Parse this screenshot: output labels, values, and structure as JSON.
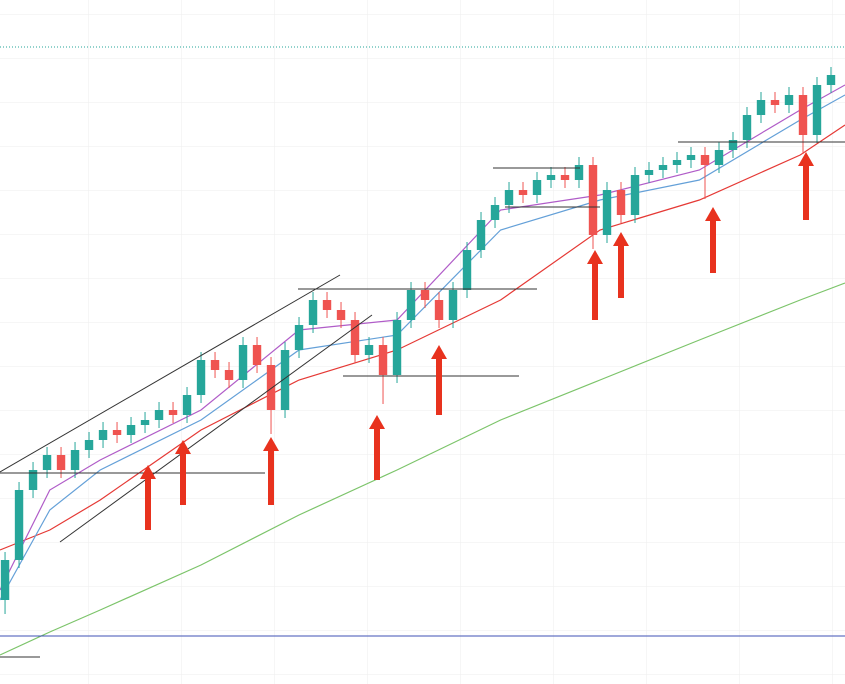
{
  "chart_data": {
    "type": "candlestick",
    "categories": [
      null,
      null,
      null,
      null,
      null,
      null,
      null,
      null,
      null,
      null,
      null,
      null,
      null,
      null,
      null,
      null,
      null,
      null,
      null,
      null,
      null,
      null,
      null,
      null,
      null,
      null,
      null,
      null,
      null,
      null,
      null,
      null,
      null,
      null,
      null,
      null,
      null,
      null,
      null,
      null,
      null,
      null,
      null,
      null,
      null,
      null,
      null,
      null,
      null,
      null,
      null,
      null,
      null,
      null,
      null,
      null,
      null,
      null,
      null,
      null
    ],
    "open": [
      84,
      124,
      194,
      214,
      229,
      214,
      234,
      244,
      254,
      249,
      259,
      264,
      274,
      269,
      289,
      324,
      314,
      304,
      339,
      319,
      274,
      334,
      359,
      384,
      374,
      364,
      329,
      339,
      309,
      364,
      394,
      384,
      364,
      394,
      434,
      464,
      479,
      494,
      489,
      504,
      509,
      504,
      519,
      449,
      494,
      469,
      509,
      514,
      519,
      524,
      529,
      519,
      534,
      544,
      569,
      584,
      579,
      589,
      549,
      599
    ],
    "high": [
      132,
      202,
      222,
      237,
      237,
      242,
      252,
      262,
      262,
      267,
      272,
      282,
      282,
      297,
      332,
      332,
      322,
      347,
      347,
      327,
      342,
      367,
      392,
      392,
      382,
      372,
      347,
      347,
      372,
      402,
      402,
      392,
      402,
      442,
      472,
      487,
      502,
      502,
      512,
      517,
      517,
      527,
      527,
      502,
      502,
      517,
      522,
      527,
      532,
      537,
      537,
      542,
      552,
      577,
      592,
      592,
      597,
      597,
      607,
      617
    ],
    "low": [
      70,
      116,
      186,
      206,
      206,
      206,
      226,
      236,
      241,
      241,
      251,
      256,
      261,
      261,
      281,
      306,
      296,
      296,
      311,
      250,
      266,
      326,
      351,
      366,
      356,
      321,
      321,
      280,
      301,
      356,
      376,
      356,
      356,
      386,
      426,
      456,
      471,
      481,
      481,
      496,
      496,
      496,
      435,
      441,
      461,
      461,
      501,
      506,
      511,
      516,
      485,
      511,
      526,
      536,
      561,
      571,
      571,
      530,
      541,
      591
    ],
    "close": [
      124,
      194,
      214,
      229,
      214,
      234,
      244,
      254,
      249,
      259,
      264,
      274,
      269,
      289,
      324,
      314,
      304,
      339,
      319,
      274,
      334,
      359,
      384,
      374,
      364,
      329,
      339,
      309,
      364,
      394,
      384,
      364,
      394,
      434,
      464,
      479,
      494,
      489,
      504,
      509,
      504,
      519,
      449,
      494,
      469,
      509,
      514,
      519,
      524,
      529,
      519,
      534,
      544,
      569,
      584,
      579,
      589,
      549,
      599,
      609
    ],
    "up_color": "#26a69a",
    "down_color": "#ef5350",
    "overlays": [
      {
        "color": "#e53935",
        "x": [
          -0.36,
          3.2,
          6.8,
          14,
          21,
          28,
          35.4,
          42.5,
          49.6,
          56.8,
          60
        ],
        "values": [
          134,
          154,
          184,
          254,
          304,
          334,
          384,
          454,
          484,
          529,
          559
        ]
      },
      {
        "color": "#64a0d8",
        "x": [
          -0.36,
          3.2,
          6.8,
          14,
          21,
          28,
          35.4,
          42.5,
          49.6,
          56.8,
          60
        ],
        "values": [
          84,
          174,
          214,
          264,
          334,
          349,
          454,
          484,
          504,
          564,
          589
        ]
      },
      {
        "color": "#b05cc8",
        "x": [
          -0.36,
          3.2,
          6.8,
          14,
          21,
          28,
          35.4,
          42.5,
          49.6,
          56.8,
          60
        ],
        "values": [
          94,
          194,
          224,
          274,
          354,
          364,
          474,
          489,
          514,
          574,
          599
        ]
      },
      {
        "color": "#7cc46a",
        "x": [
          -0.36,
          3.2,
          6.8,
          14,
          21,
          28,
          35.4,
          42.5,
          49.6,
          56.8,
          60
        ],
        "values": [
          29,
          52,
          74,
          119,
          169,
          214,
          264,
          304,
          344,
          384,
          401
        ]
      }
    ],
    "reference_lines": [
      {
        "value": 637,
        "color": "#26a69a",
        "dashed": true
      },
      {
        "value": 48,
        "color": "#3f51b5",
        "dashed": false
      }
    ],
    "xlim": [
      -0.36,
      60
    ],
    "ylim": [
      0,
      684
    ]
  }
}
